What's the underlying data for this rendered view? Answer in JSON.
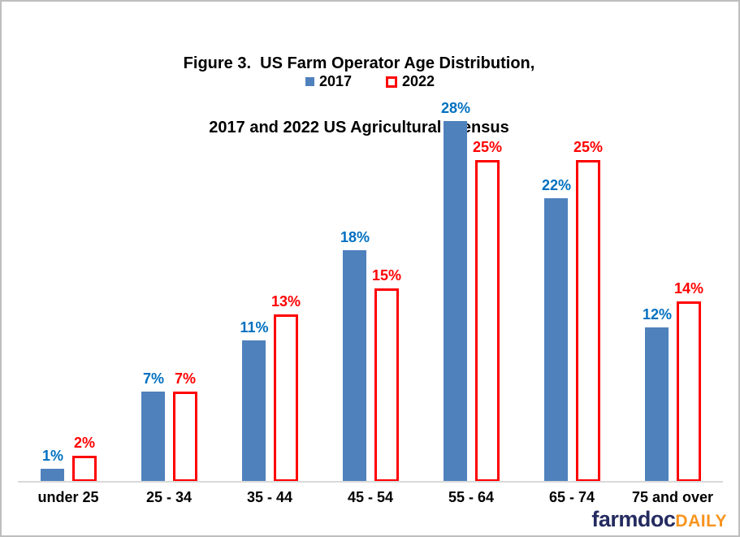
{
  "title": {
    "line1": "Figure 3.  US Farm Operator Age Distribution,",
    "line2": "2017 and 2022 US Agricultural  Census"
  },
  "legend": {
    "items": [
      {
        "label": "2017",
        "style": "filled",
        "color": "#4F81BD"
      },
      {
        "label": "2022",
        "style": "outlined",
        "color": "#FF0000"
      }
    ]
  },
  "chart_data": {
    "type": "bar",
    "title": "Figure 3. US Farm Operator Age Distribution, 2017 and 2022 US Agricultural Census",
    "categories": [
      "under 25",
      "25 - 34",
      "35 - 44",
      "45 - 54",
      "55 - 64",
      "65 - 74",
      "75 and over"
    ],
    "series": [
      {
        "name": "2017",
        "values": [
          1,
          7,
          11,
          18,
          28,
          22,
          12
        ],
        "bar_color": "#4F81BD",
        "bar_style": "filled",
        "label_color": "#0070C0"
      },
      {
        "name": "2022",
        "values": [
          2,
          7,
          13,
          15,
          25,
          25,
          14
        ],
        "bar_color": "#FF0000",
        "bar_style": "outlined",
        "label_color": "#FF0000"
      }
    ],
    "value_suffix": "%",
    "xlabel": "",
    "ylabel": "",
    "ylim": [
      0,
      29
    ],
    "grid": false,
    "y_axis_shown": false,
    "legend_position": "top-center",
    "axis_line_color": "#D9D9D9"
  },
  "branding": {
    "farmdoc": "farmdoc",
    "daily": "DAILY",
    "farmdoc_color": "#242B60",
    "daily_color": "#F7941E"
  }
}
